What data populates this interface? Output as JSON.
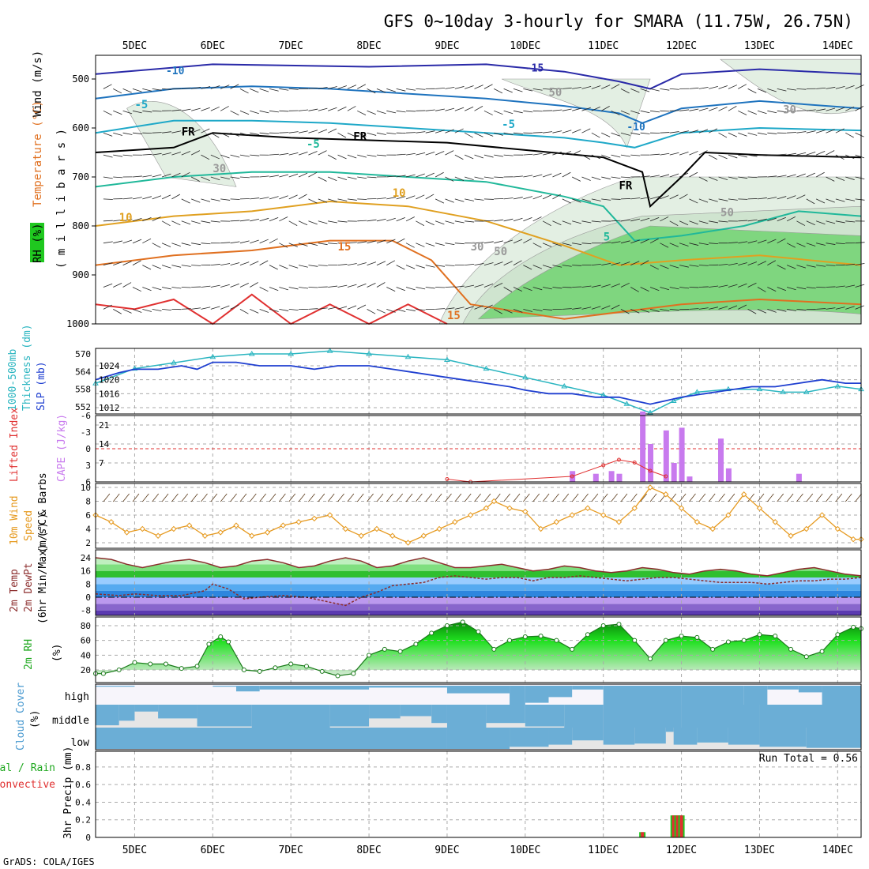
{
  "header": {
    "title": "GFS 0~10day 3-hourly for SMARA (11.75W, 26.75N)",
    "credit": "GrADS: COLA/IGES"
  },
  "time_axis": {
    "labels": [
      "5DEC",
      "6DEC",
      "7DEC",
      "8DEC",
      "9DEC",
      "10DEC",
      "11DEC",
      "12DEC",
      "13DEC",
      "14DEC"
    ],
    "start_day": 4.5,
    "end_day": 14.3
  },
  "colors": {
    "sfc_temp_bands": [
      "#5b3ab0",
      "#8866cc",
      "#bb99ee",
      "#2e86de",
      "#55aaf0",
      "#99ccff",
      "#2fbf2f",
      "#7fdf7f",
      "#bfefbf",
      "#f2e4a0"
    ],
    "slp_line": "#1f3fd0",
    "thickness_line": "#2ab5c0",
    "cape_bar": "#c87aee",
    "lifted_index": "#e03030",
    "wind_speed": "#e69a20",
    "rh_green": "#1fc81f",
    "cloud_blue": "#6baed6",
    "cloud_gray": "#e6e6e6"
  },
  "panels": {
    "upper": {
      "label_rh": "RH (%)",
      "label_temp": "Temperature (°C)",
      "label_wind": "Wind (m/s)",
      "ylabel": "( m i l l i b a r s )",
      "levels": [
        500,
        600,
        700,
        800,
        900,
        1000
      ],
      "contour_labels": [
        "-15",
        "-10",
        "-5",
        "-5",
        "-5",
        "-10",
        "5",
        "10",
        "10",
        "15",
        "15",
        "FR",
        "FR",
        "FR",
        "30",
        "30",
        "30",
        "50",
        "50",
        "50"
      ]
    },
    "slp": {
      "label_thick": "1000-500mb",
      "label_thick2": "Thickness (dm)",
      "label_slp": "SLP (mb)",
      "left_ticks": [
        570,
        564,
        558,
        552
      ],
      "right_ticks": [
        1024,
        1020,
        1016,
        1012
      ]
    },
    "cape": {
      "label_li": "Lifted Index",
      "label_cape": "CAPE (J/kg)",
      "left_ticks": [
        -6,
        -3,
        0,
        3,
        6
      ],
      "right_ticks": [
        21,
        14,
        7
      ]
    },
    "wind": {
      "label1": "10m Wind",
      "label2": "Speed",
      "label3": "(m/s) & Barbs",
      "ticks": [
        2,
        4,
        6,
        8,
        10
      ]
    },
    "temp": {
      "label1": "2m Temp",
      "label2": "2m DewPt",
      "label3": "(6hr Min/Max) (°C)",
      "ticks": [
        24,
        16,
        8,
        0,
        -8
      ]
    },
    "rh": {
      "label1": "2m RH",
      "label2": "(%)",
      "ticks": [
        80,
        60,
        40,
        20
      ]
    },
    "cloud": {
      "label1": "Cloud Cover",
      "label2": "(%)",
      "levels": [
        "high",
        "middle",
        "low"
      ]
    },
    "precip": {
      "label1": "Total / Rain",
      "label2": "Convective",
      "label3": "3hr Precip (mm)",
      "ticks": [
        0,
        0.2,
        0.4,
        0.6,
        0.8
      ],
      "run_total": "Run Total = 0.56"
    }
  },
  "chart_data": {
    "type": "line",
    "title": "GFS 0~10day 3-hourly for SMARA (11.75W, 26.75N)",
    "x_unit": "day of December (fractional)",
    "slp_mb": [
      [
        4.5,
        1020
      ],
      [
        4.8,
        1022
      ],
      [
        5.0,
        1023
      ],
      [
        5.3,
        1023
      ],
      [
        5.6,
        1024
      ],
      [
        5.8,
        1023
      ],
      [
        6.0,
        1025
      ],
      [
        6.3,
        1025
      ],
      [
        6.6,
        1024
      ],
      [
        7.0,
        1024
      ],
      [
        7.3,
        1023
      ],
      [
        7.6,
        1024
      ],
      [
        8.0,
        1024
      ],
      [
        8.3,
        1023
      ],
      [
        8.6,
        1022
      ],
      [
        8.9,
        1021
      ],
      [
        9.2,
        1020
      ],
      [
        9.5,
        1019
      ],
      [
        9.8,
        1018
      ],
      [
        10.0,
        1017
      ],
      [
        10.3,
        1016
      ],
      [
        10.6,
        1016
      ],
      [
        10.9,
        1015
      ],
      [
        11.2,
        1015
      ],
      [
        11.4,
        1014
      ],
      [
        11.6,
        1013
      ],
      [
        11.8,
        1014
      ],
      [
        12.0,
        1015
      ],
      [
        12.3,
        1016
      ],
      [
        12.6,
        1017
      ],
      [
        12.9,
        1018
      ],
      [
        13.2,
        1018
      ],
      [
        13.5,
        1019
      ],
      [
        13.8,
        1020
      ],
      [
        14.1,
        1019
      ],
      [
        14.3,
        1019
      ]
    ],
    "thickness_dm": [
      [
        4.5,
        560
      ],
      [
        5.0,
        565
      ],
      [
        5.5,
        567
      ],
      [
        6.0,
        569
      ],
      [
        6.5,
        570
      ],
      [
        7.0,
        570
      ],
      [
        7.5,
        571
      ],
      [
        8.0,
        570
      ],
      [
        8.5,
        569
      ],
      [
        9.0,
        568
      ],
      [
        9.5,
        565
      ],
      [
        10.0,
        562
      ],
      [
        10.5,
        559
      ],
      [
        11.0,
        556
      ],
      [
        11.3,
        553
      ],
      [
        11.6,
        550
      ],
      [
        11.9,
        554
      ],
      [
        12.2,
        557
      ],
      [
        12.6,
        558
      ],
      [
        13.0,
        558
      ],
      [
        13.3,
        557
      ],
      [
        13.6,
        557
      ],
      [
        14.0,
        559
      ],
      [
        14.3,
        558
      ]
    ],
    "cape_jkg": [
      [
        10.6,
        4
      ],
      [
        10.9,
        3
      ],
      [
        11.1,
        4
      ],
      [
        11.2,
        3
      ],
      [
        11.5,
        26
      ],
      [
        11.6,
        14
      ],
      [
        11.8,
        19
      ],
      [
        11.9,
        7
      ],
      [
        12.0,
        20
      ],
      [
        12.1,
        2
      ],
      [
        12.5,
        16
      ],
      [
        12.6,
        5
      ],
      [
        13.5,
        3
      ]
    ],
    "lifted_index": [
      [
        9.0,
        5.5
      ],
      [
        9.3,
        6
      ],
      [
        10.6,
        5
      ],
      [
        11.0,
        3
      ],
      [
        11.2,
        2
      ],
      [
        11.4,
        2.5
      ],
      [
        11.6,
        4
      ],
      [
        11.8,
        5
      ]
    ],
    "wind_speed_ms": [
      [
        4.5,
        6
      ],
      [
        4.7,
        5
      ],
      [
        4.9,
        3.5
      ],
      [
        5.1,
        4
      ],
      [
        5.3,
        3
      ],
      [
        5.5,
        4
      ],
      [
        5.7,
        4.5
      ],
      [
        5.9,
        3
      ],
      [
        6.1,
        3.5
      ],
      [
        6.3,
        4.5
      ],
      [
        6.5,
        3
      ],
      [
        6.7,
        3.5
      ],
      [
        6.9,
        4.5
      ],
      [
        7.1,
        5
      ],
      [
        7.3,
        5.5
      ],
      [
        7.5,
        6
      ],
      [
        7.7,
        4
      ],
      [
        7.9,
        3
      ],
      [
        8.1,
        4
      ],
      [
        8.3,
        3
      ],
      [
        8.5,
        2
      ],
      [
        8.7,
        3
      ],
      [
        8.9,
        4
      ],
      [
        9.1,
        5
      ],
      [
        9.3,
        6
      ],
      [
        9.5,
        7
      ],
      [
        9.6,
        8
      ],
      [
        9.8,
        7
      ],
      [
        10.0,
        6.5
      ],
      [
        10.2,
        4
      ],
      [
        10.4,
        5
      ],
      [
        10.6,
        6
      ],
      [
        10.8,
        7
      ],
      [
        11.0,
        6
      ],
      [
        11.2,
        5
      ],
      [
        11.4,
        7
      ],
      [
        11.6,
        10
      ],
      [
        11.8,
        9
      ],
      [
        12.0,
        7
      ],
      [
        12.2,
        5
      ],
      [
        12.4,
        4
      ],
      [
        12.6,
        6
      ],
      [
        12.8,
        9
      ],
      [
        13.0,
        7
      ],
      [
        13.2,
        5
      ],
      [
        13.4,
        3
      ],
      [
        13.6,
        4
      ],
      [
        13.8,
        6
      ],
      [
        14.0,
        4
      ],
      [
        14.2,
        2.5
      ],
      [
        14.3,
        2.5
      ]
    ],
    "temp_2m_c": [
      [
        4.5,
        24
      ],
      [
        4.7,
        23
      ],
      [
        4.9,
        20
      ],
      [
        5.1,
        18
      ],
      [
        5.3,
        20
      ],
      [
        5.5,
        22
      ],
      [
        5.7,
        23
      ],
      [
        5.9,
        21
      ],
      [
        6.1,
        18
      ],
      [
        6.3,
        19
      ],
      [
        6.5,
        22
      ],
      [
        6.7,
        23
      ],
      [
        6.9,
        21
      ],
      [
        7.1,
        18
      ],
      [
        7.3,
        19
      ],
      [
        7.5,
        22
      ],
      [
        7.7,
        24
      ],
      [
        7.9,
        22
      ],
      [
        8.1,
        18
      ],
      [
        8.3,
        19
      ],
      [
        8.5,
        22
      ],
      [
        8.7,
        24
      ],
      [
        8.9,
        21
      ],
      [
        9.1,
        18
      ],
      [
        9.3,
        18
      ],
      [
        9.5,
        19
      ],
      [
        9.7,
        20
      ],
      [
        9.9,
        18
      ],
      [
        10.1,
        16
      ],
      [
        10.3,
        17
      ],
      [
        10.5,
        19
      ],
      [
        10.7,
        18
      ],
      [
        10.9,
        16
      ],
      [
        11.1,
        15
      ],
      [
        11.3,
        16
      ],
      [
        11.5,
        18
      ],
      [
        11.7,
        17
      ],
      [
        11.9,
        15
      ],
      [
        12.1,
        14
      ],
      [
        12.3,
        16
      ],
      [
        12.5,
        17
      ],
      [
        12.7,
        16
      ],
      [
        12.9,
        14
      ],
      [
        13.1,
        13
      ],
      [
        13.3,
        15
      ],
      [
        13.5,
        17
      ],
      [
        13.7,
        18
      ],
      [
        13.9,
        16
      ],
      [
        14.1,
        14
      ],
      [
        14.3,
        13
      ]
    ],
    "dewpoint_2m_c": [
      [
        4.5,
        2
      ],
      [
        4.8,
        1
      ],
      [
        5.0,
        2
      ],
      [
        5.3,
        1
      ],
      [
        5.6,
        1
      ],
      [
        5.9,
        4
      ],
      [
        6.0,
        8
      ],
      [
        6.2,
        5
      ],
      [
        6.4,
        -1
      ],
      [
        6.6,
        0
      ],
      [
        6.9,
        1
      ],
      [
        7.2,
        0
      ],
      [
        7.5,
        -3
      ],
      [
        7.7,
        -5
      ],
      [
        7.9,
        0
      ],
      [
        8.1,
        3
      ],
      [
        8.3,
        7
      ],
      [
        8.5,
        8
      ],
      [
        8.7,
        9
      ],
      [
        8.9,
        12
      ],
      [
        9.1,
        13
      ],
      [
        9.3,
        12
      ],
      [
        9.5,
        11
      ],
      [
        9.7,
        12
      ],
      [
        9.9,
        12
      ],
      [
        10.1,
        10
      ],
      [
        10.3,
        12
      ],
      [
        10.5,
        12
      ],
      [
        10.7,
        13
      ],
      [
        10.9,
        12
      ],
      [
        11.1,
        11
      ],
      [
        11.3,
        10
      ],
      [
        11.5,
        11
      ],
      [
        11.7,
        12
      ],
      [
        11.9,
        12
      ],
      [
        12.1,
        11
      ],
      [
        12.3,
        10
      ],
      [
        12.5,
        9
      ],
      [
        12.7,
        9
      ],
      [
        12.9,
        9
      ],
      [
        13.1,
        8
      ],
      [
        13.3,
        9
      ],
      [
        13.5,
        10
      ],
      [
        13.7,
        10
      ],
      [
        13.9,
        11
      ],
      [
        14.1,
        11
      ],
      [
        14.3,
        12
      ]
    ],
    "rh_2m_pct": [
      [
        4.5,
        15
      ],
      [
        4.6,
        15
      ],
      [
        4.8,
        20
      ],
      [
        5.0,
        30
      ],
      [
        5.2,
        28
      ],
      [
        5.4,
        28
      ],
      [
        5.6,
        22
      ],
      [
        5.8,
        25
      ],
      [
        5.95,
        55
      ],
      [
        6.1,
        65
      ],
      [
        6.2,
        58
      ],
      [
        6.4,
        20
      ],
      [
        6.6,
        18
      ],
      [
        6.8,
        23
      ],
      [
        7.0,
        28
      ],
      [
        7.2,
        25
      ],
      [
        7.4,
        18
      ],
      [
        7.6,
        12
      ],
      [
        7.8,
        15
      ],
      [
        8.0,
        40
      ],
      [
        8.2,
        48
      ],
      [
        8.4,
        45
      ],
      [
        8.6,
        55
      ],
      [
        8.8,
        70
      ],
      [
        9.0,
        80
      ],
      [
        9.2,
        85
      ],
      [
        9.4,
        72
      ],
      [
        9.6,
        48
      ],
      [
        9.8,
        60
      ],
      [
        10.0,
        65
      ],
      [
        10.2,
        66
      ],
      [
        10.4,
        60
      ],
      [
        10.6,
        48
      ],
      [
        10.8,
        68
      ],
      [
        11.0,
        80
      ],
      [
        11.2,
        82
      ],
      [
        11.4,
        60
      ],
      [
        11.6,
        35
      ],
      [
        11.8,
        60
      ],
      [
        12.0,
        66
      ],
      [
        12.2,
        64
      ],
      [
        12.4,
        48
      ],
      [
        12.6,
        58
      ],
      [
        12.8,
        60
      ],
      [
        13.0,
        68
      ],
      [
        13.2,
        66
      ],
      [
        13.4,
        48
      ],
      [
        13.6,
        38
      ],
      [
        13.8,
        45
      ],
      [
        14.0,
        68
      ],
      [
        14.2,
        78
      ],
      [
        14.3,
        76
      ]
    ],
    "cloud_high_pct": [
      [
        4.5,
        5
      ],
      [
        5.0,
        0
      ],
      [
        6.0,
        5
      ],
      [
        6.3,
        30
      ],
      [
        6.6,
        20
      ],
      [
        8.0,
        10
      ],
      [
        9.0,
        40
      ],
      [
        9.8,
        100
      ],
      [
        10.0,
        90
      ],
      [
        10.3,
        60
      ],
      [
        10.6,
        20
      ],
      [
        11.0,
        100
      ],
      [
        12.0,
        100
      ],
      [
        12.8,
        100
      ],
      [
        13.1,
        20
      ],
      [
        13.5,
        35
      ],
      [
        13.8,
        100
      ],
      [
        14.3,
        100
      ]
    ],
    "cloud_mid_pct": [
      [
        4.5,
        90
      ],
      [
        4.8,
        70
      ],
      [
        5.0,
        30
      ],
      [
        5.3,
        60
      ],
      [
        5.8,
        95
      ],
      [
        6.5,
        100
      ],
      [
        7.5,
        95
      ],
      [
        8.0,
        60
      ],
      [
        8.4,
        50
      ],
      [
        8.8,
        80
      ],
      [
        9.0,
        100
      ],
      [
        9.5,
        80
      ],
      [
        10.0,
        95
      ],
      [
        10.5,
        100
      ],
      [
        11.0,
        100
      ],
      [
        12.0,
        100
      ],
      [
        13.0,
        100
      ],
      [
        14.3,
        100
      ]
    ],
    "cloud_low_pct": [
      [
        4.5,
        100
      ],
      [
        9.0,
        100
      ],
      [
        9.8,
        90
      ],
      [
        10.3,
        80
      ],
      [
        10.6,
        60
      ],
      [
        11.0,
        80
      ],
      [
        11.4,
        75
      ],
      [
        11.8,
        20
      ],
      [
        11.9,
        80
      ],
      [
        12.2,
        70
      ],
      [
        12.6,
        80
      ],
      [
        13.0,
        90
      ],
      [
        13.6,
        95
      ],
      [
        14.3,
        100
      ]
    ],
    "precip_3hr_mm": [
      [
        11.5,
        0.06
      ],
      [
        11.9,
        0.25
      ],
      [
        11.95,
        0.25
      ],
      [
        12.0,
        0.25
      ]
    ],
    "run_total_mm": 0.56
  }
}
